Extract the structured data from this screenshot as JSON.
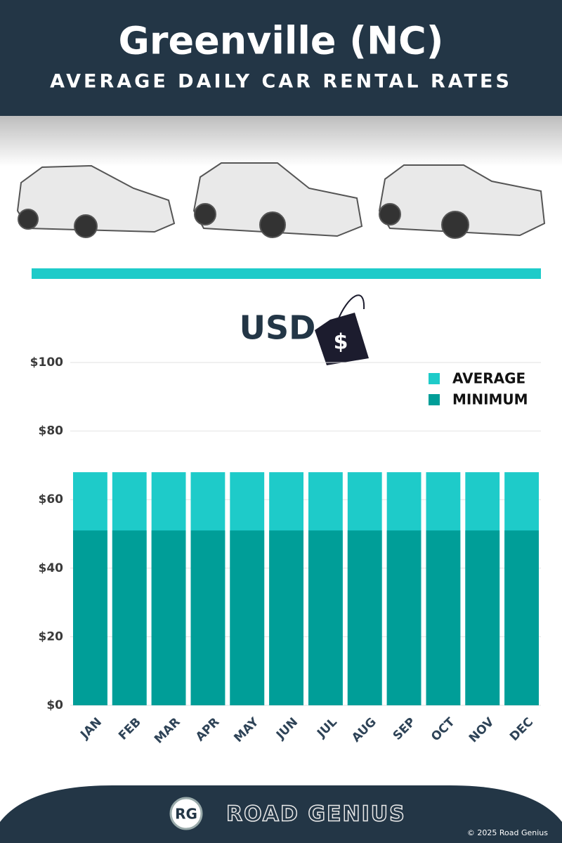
{
  "chart_data": {
    "type": "bar",
    "title": "Greenville (NC)",
    "subtitle": "AVERAGE DAILY CAR RENTAL RATES",
    "annotation": "USD",
    "categories": [
      "JAN",
      "FEB",
      "MAR",
      "APR",
      "MAY",
      "JUN",
      "JUL",
      "AUG",
      "SEP",
      "OCT",
      "NOV",
      "DEC"
    ],
    "series": [
      {
        "name": "AVERAGE",
        "color": "#1ecbc9",
        "values": [
          68,
          68,
          68,
          68,
          68,
          68,
          68,
          68,
          68,
          68,
          68,
          68
        ]
      },
      {
        "name": "MINIMUM",
        "color": "#009e98",
        "values": [
          51,
          51,
          51,
          51,
          51,
          51,
          51,
          51,
          51,
          51,
          51,
          51
        ]
      }
    ],
    "ylim": [
      0,
      100
    ],
    "yticks": [
      {
        "value": 0,
        "label": "$0"
      },
      {
        "value": 20,
        "label": "$20"
      },
      {
        "value": 40,
        "label": "$40"
      },
      {
        "value": 60,
        "label": "$60"
      },
      {
        "value": 80,
        "label": "$80"
      },
      {
        "value": 100,
        "label": "$100"
      }
    ],
    "grid": true,
    "legend": "top-right"
  },
  "footer": {
    "logo": "RG",
    "brand": "ROAD GENIUS",
    "copyright": "© 2025 Road Genius"
  }
}
